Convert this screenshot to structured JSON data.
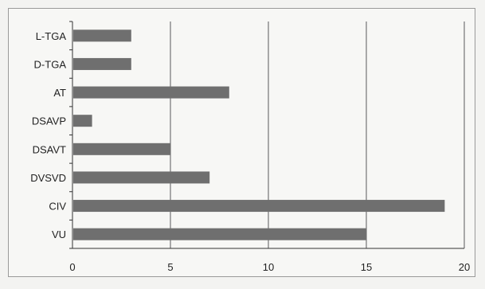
{
  "chart_data": {
    "type": "bar",
    "orientation": "horizontal",
    "categories": [
      "L-TGA",
      "D-TGA",
      "AT",
      "DSAVP",
      "DSAVT",
      "DVSVD",
      "CIV",
      "VU"
    ],
    "values": [
      3,
      3,
      8,
      1,
      5,
      7,
      19,
      15
    ],
    "title": "",
    "xlabel": "",
    "ylabel": "",
    "xlim": [
      0,
      20
    ],
    "xticks": [
      0,
      5,
      10,
      15,
      20
    ],
    "grid": "vertical",
    "legend": "none",
    "bar_color": "#6f6f6f",
    "grid_color": "#5a5a5a"
  }
}
